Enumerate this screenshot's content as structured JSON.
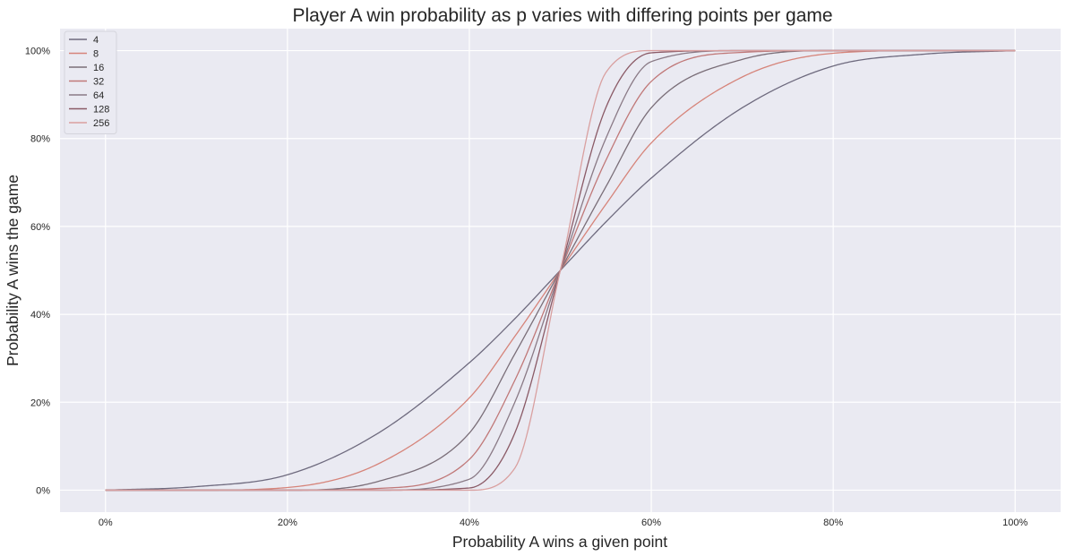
{
  "chart_data": {
    "type": "line",
    "title": "Player A win probability as p varies with differing points per game",
    "xlabel": "Probability A wins a given point",
    "ylabel": "Probability A wins the game",
    "xlim": [
      -0.05,
      1.05
    ],
    "ylim": [
      -0.05,
      1.05
    ],
    "x_ticks": [
      0,
      0.2,
      0.4,
      0.6,
      0.8,
      1.0
    ],
    "x_tick_labels": [
      "0%",
      "20%",
      "40%",
      "60%",
      "80%",
      "100%"
    ],
    "y_ticks": [
      0,
      0.2,
      0.4,
      0.6,
      0.8,
      1.0
    ],
    "y_tick_labels": [
      "0%",
      "20%",
      "40%",
      "60%",
      "80%",
      "100%"
    ],
    "grid": true,
    "legend_position": "top-left",
    "x": [
      0,
      0.1,
      0.2,
      0.3,
      0.4,
      0.45,
      0.5,
      0.55,
      0.6,
      0.7,
      0.8,
      0.9,
      1.0
    ],
    "series": [
      {
        "name": "4",
        "color": "#6e6a7e",
        "values": [
          0,
          0.008,
          0.035,
          0.13,
          0.29,
          0.39,
          0.5,
          0.61,
          0.71,
          0.87,
          0.965,
          0.992,
          1.0
        ]
      },
      {
        "name": "8",
        "color": "#d6847a",
        "values": [
          0,
          0.0,
          0.006,
          0.06,
          0.21,
          0.35,
          0.5,
          0.65,
          0.79,
          0.94,
          0.994,
          1.0,
          1.0
        ]
      },
      {
        "name": "16",
        "color": "#7a6e78",
        "values": [
          0,
          0.0,
          0.0,
          0.02,
          0.13,
          0.31,
          0.5,
          0.69,
          0.87,
          0.98,
          1.0,
          1.0,
          1.0
        ]
      },
      {
        "name": "32",
        "color": "#c07878",
        "values": [
          0,
          0.0,
          0.0,
          0.004,
          0.07,
          0.25,
          0.5,
          0.75,
          0.93,
          0.996,
          1.0,
          1.0,
          1.0
        ]
      },
      {
        "name": "64",
        "color": "#8a7a86",
        "values": [
          0,
          0.0,
          0.0,
          0.0,
          0.025,
          0.2,
          0.5,
          0.8,
          0.975,
          1.0,
          1.0,
          1.0,
          1.0
        ]
      },
      {
        "name": "128",
        "color": "#8a5a66",
        "values": [
          0,
          0.0,
          0.0,
          0.0,
          0.005,
          0.13,
          0.5,
          0.87,
          0.995,
          1.0,
          1.0,
          1.0,
          1.0
        ]
      },
      {
        "name": "256",
        "color": "#d9a0a0",
        "values": [
          0,
          0.0,
          0.0,
          0.0,
          0.0,
          0.05,
          0.5,
          0.95,
          1.0,
          1.0,
          1.0,
          1.0,
          1.0
        ]
      }
    ]
  }
}
